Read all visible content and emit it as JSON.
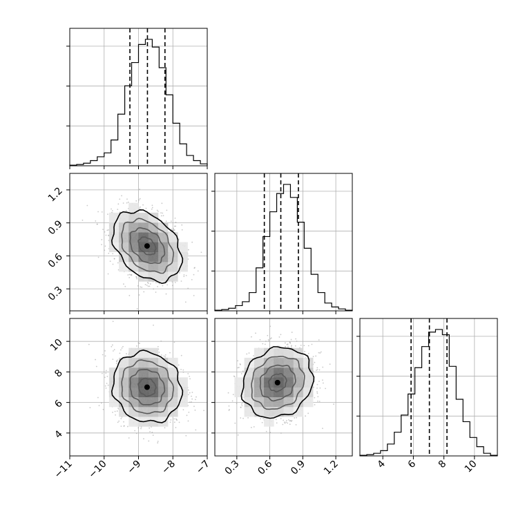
{
  "chart_data": {
    "type": "corner",
    "parameters": [
      "",
      "",
      ""
    ],
    "ranges": [
      [
        -11,
        -7
      ],
      [
        0.1,
        1.35
      ],
      [
        2.5,
        11.5
      ]
    ],
    "ticks": [
      [
        {
          "v": -11,
          "label": "−11"
        },
        {
          "v": -10,
          "label": "−10"
        },
        {
          "v": -9,
          "label": "−9"
        },
        {
          "v": -8,
          "label": "−8"
        },
        {
          "v": -7,
          "label": "−7"
        }
      ],
      [
        {
          "v": 0.3,
          "label": "0.3"
        },
        {
          "v": 0.6,
          "label": "0.6"
        },
        {
          "v": 0.9,
          "label": "0.9"
        },
        {
          "v": 1.2,
          "label": "1.2"
        }
      ],
      [
        {
          "v": 4,
          "label": "4"
        },
        {
          "v": 6,
          "label": "6"
        },
        {
          "v": 8,
          "label": "8"
        },
        {
          "v": 10,
          "label": "10"
        }
      ]
    ],
    "quantiles": [
      [
        -9.25,
        -8.74,
        -8.23
      ],
      [
        0.55,
        0.7,
        0.86
      ],
      [
        5.85,
        7.05,
        8.2
      ]
    ],
    "medians_2d": {
      "0-1": [
        -8.75,
        0.69
      ],
      "0-2": [
        -8.75,
        7.0
      ],
      "1-2": [
        0.67,
        7.3
      ]
    },
    "histograms": [
      {
        "edges_min": -11,
        "edges_max": -7,
        "counts": [
          0.5,
          1,
          2,
          4,
          7,
          10,
          20,
          40,
          62,
          80,
          94,
          98,
          92,
          76,
          55,
          33,
          17,
          8,
          4,
          1.5
        ]
      },
      {
        "edges_min": 0.1,
        "edges_max": 1.35,
        "counts": [
          0.5,
          1,
          2,
          4,
          7,
          14,
          33,
          57,
          76,
          90,
          97,
          87,
          68,
          48,
          28,
          14,
          6,
          3,
          1.5,
          0.5
        ]
      },
      {
        "edges_min": 2.5,
        "edges_max": 11.5,
        "counts": [
          0.5,
          1,
          2,
          4,
          9,
          18,
          31,
          47,
          67,
          83,
          94,
          96,
          92,
          68,
          43,
          26,
          14,
          7,
          2,
          0.5
        ]
      }
    ],
    "grid": true,
    "contour_color": "#000000",
    "density_cmap": [
      "#ffffff",
      "#000000"
    ]
  }
}
